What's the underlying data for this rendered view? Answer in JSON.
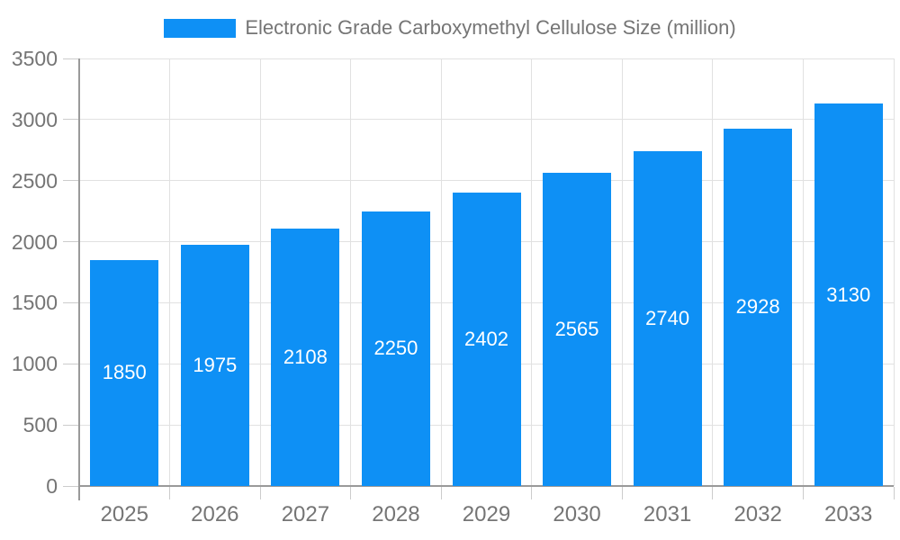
{
  "legend": {
    "items": [
      {
        "label": "Electronic Grade Carboxymethyl Cellulose Size (million)",
        "color": "#0E90F5"
      }
    ]
  },
  "colors": {
    "bar": "#0E90F5",
    "axis_text": "#757575",
    "bar_label_text": "#FFFFFF",
    "grid_line": "#E1E1E1",
    "axis_line": "#9A9A9A",
    "tick_line": "#CCCCCC",
    "background": "#FFFFFF"
  },
  "chart_data": {
    "type": "bar",
    "title": "Electronic Grade Carboxymethyl Cellulose Size (million)",
    "categories": [
      "2025",
      "2026",
      "2027",
      "2028",
      "2029",
      "2030",
      "2031",
      "2032",
      "2033"
    ],
    "values": [
      1850,
      1975,
      2108,
      2250,
      2402,
      2565,
      2740,
      2928,
      3130
    ],
    "series": [
      {
        "name": "Electronic Grade Carboxymethyl Cellulose Size (million)",
        "values": [
          1850,
          1975,
          2108,
          2250,
          2402,
          2565,
          2740,
          2928,
          3130
        ]
      }
    ],
    "xlabel": "",
    "ylabel": "",
    "ylim": [
      0,
      3500
    ],
    "ytick_step": 500,
    "grid": true,
    "legend_position": "top-center",
    "value_labels_position": "inside-center",
    "bar_color": "#0E90F5"
  }
}
